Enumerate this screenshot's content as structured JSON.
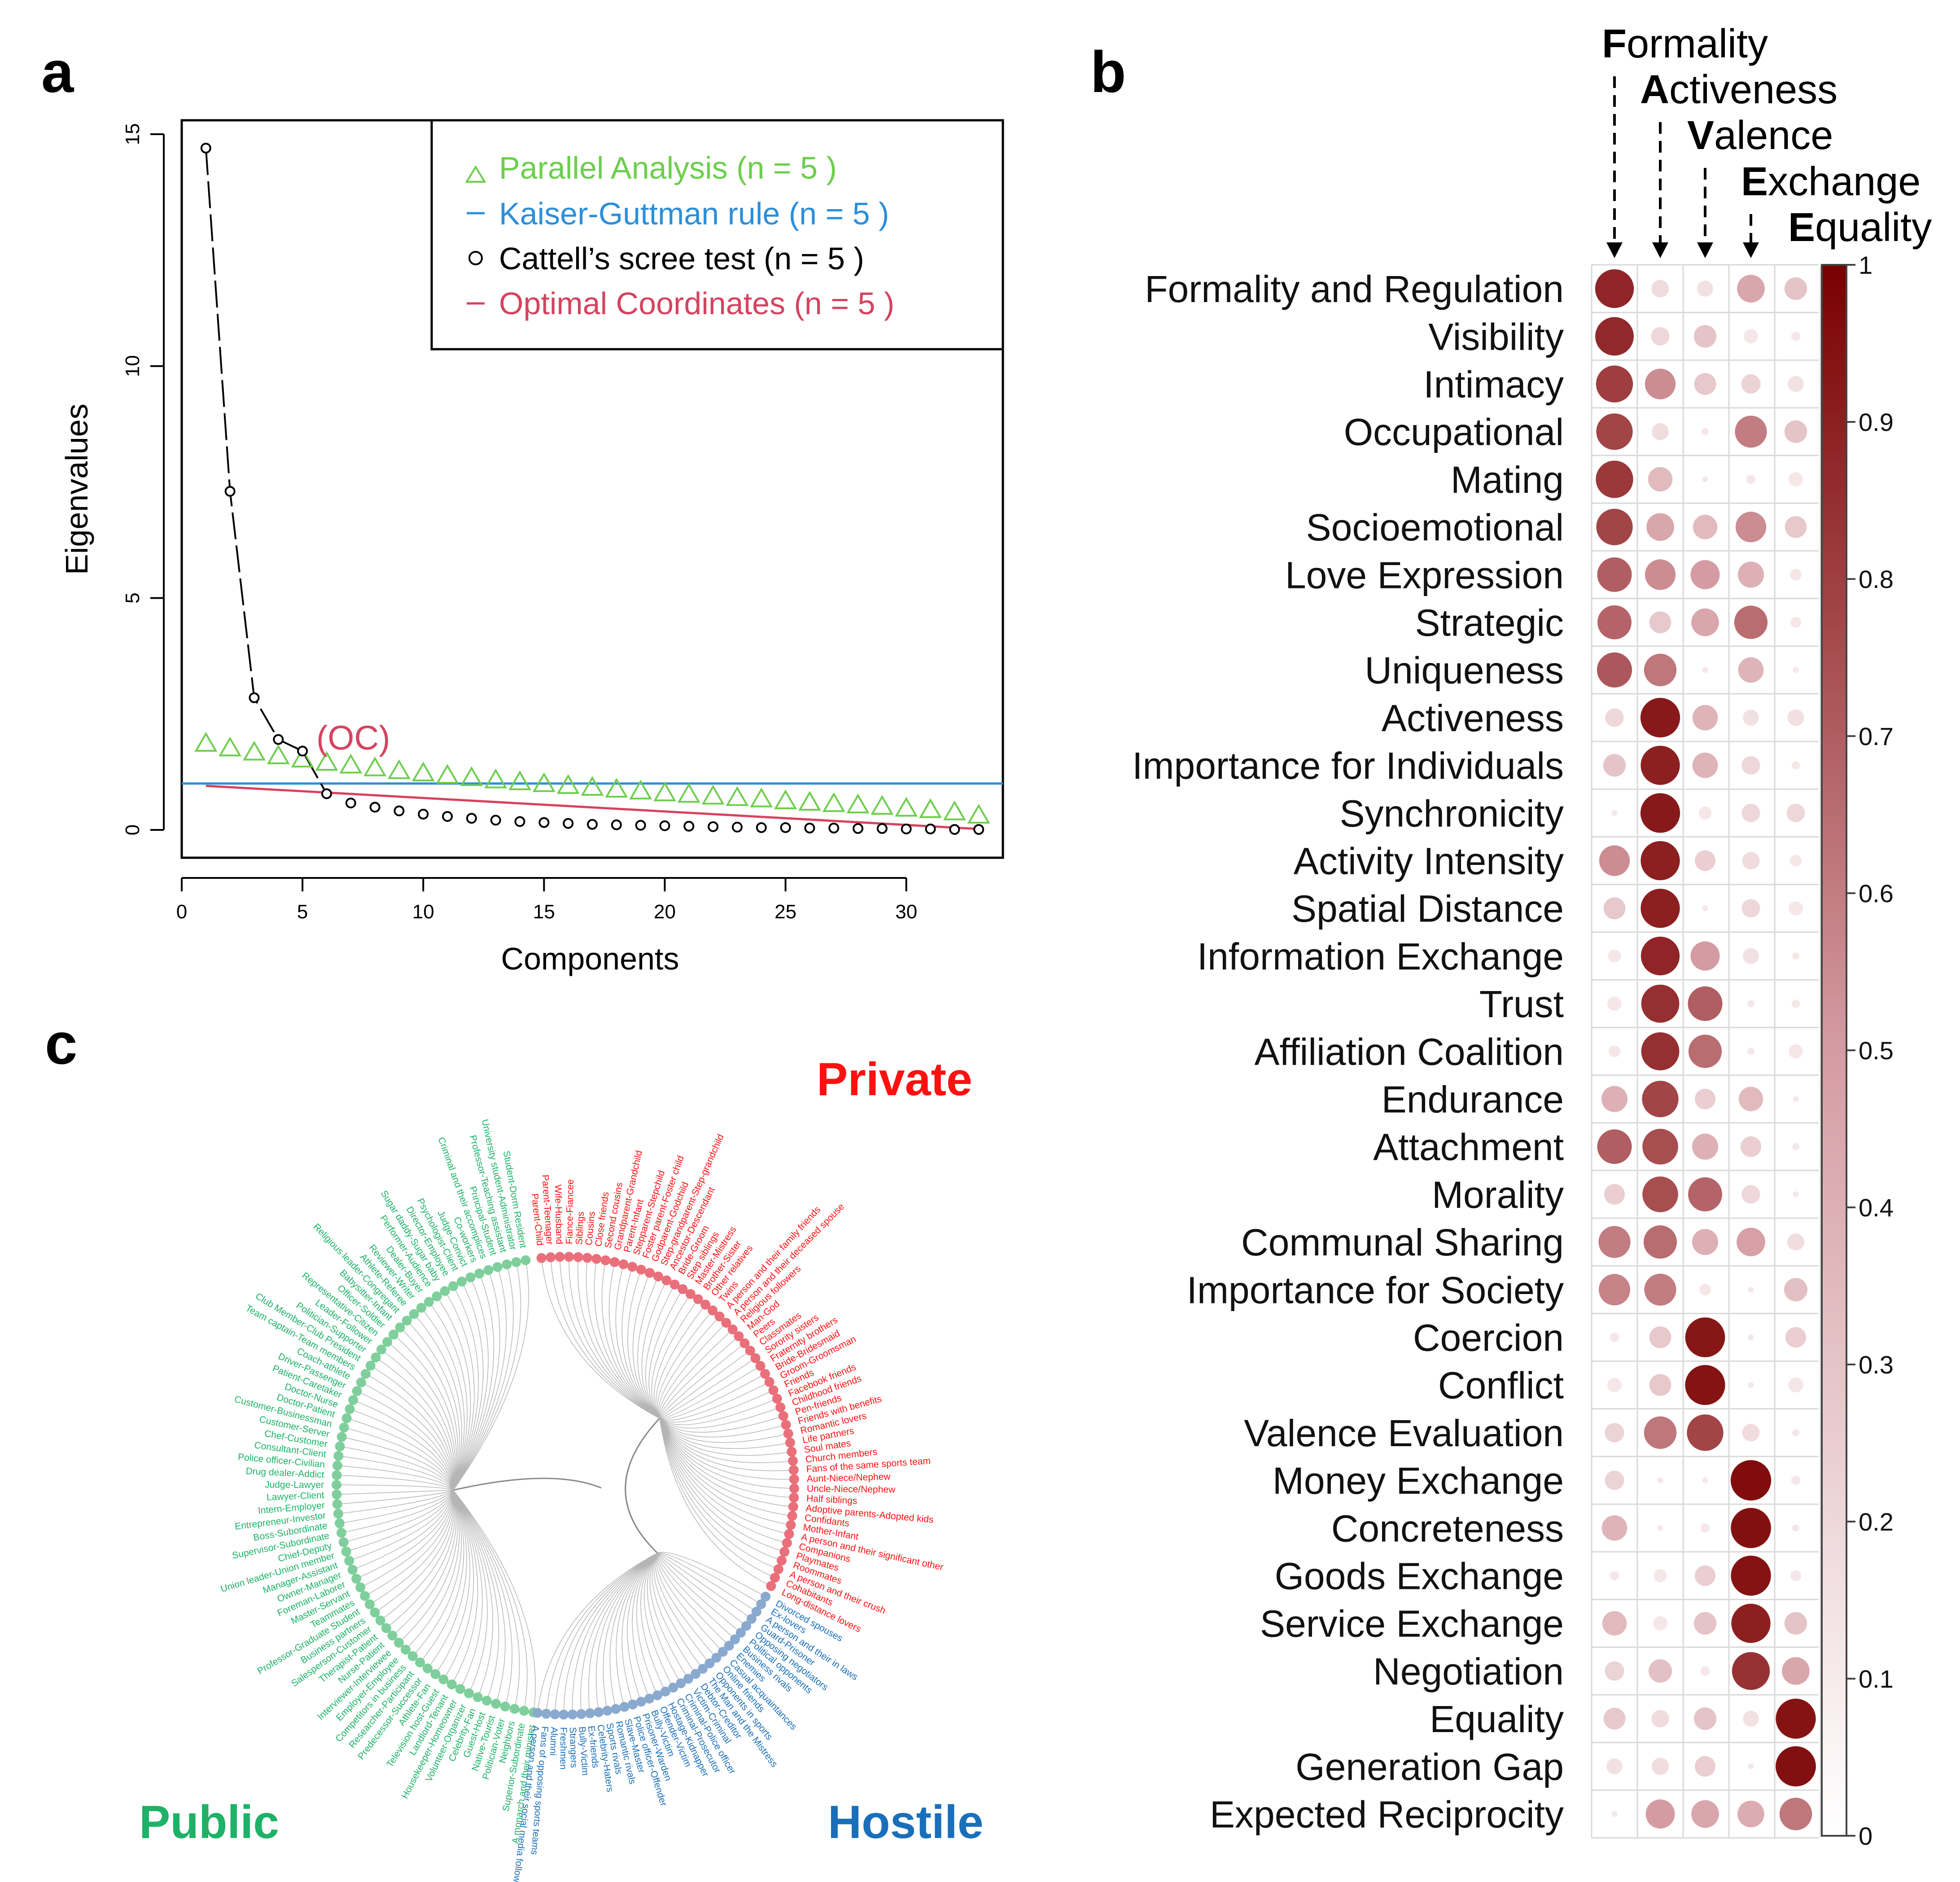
{
  "panels": {
    "a": "a",
    "b": "b",
    "c": "c"
  },
  "colors": {
    "parallel": "#6dce4d",
    "kaiser": "#2c8fd9",
    "cattell": "#000000",
    "optimal": "#d6435f",
    "public": "#1db267",
    "private": "#ff1010",
    "hostile": "#1a6fba",
    "dot_max": "#7a0000",
    "dot_mid": "#d49ca2"
  },
  "chart_data": [
    {
      "type": "scatter",
      "panel": "a",
      "xlabel": "Components",
      "ylabel": "Eigenvalues",
      "xlim": [
        0,
        34
      ],
      "ylim": [
        -0.6,
        15.3
      ],
      "xticks": [
        0,
        5,
        10,
        15,
        20,
        25,
        30
      ],
      "yticks": [
        0,
        5,
        10,
        15
      ],
      "annotation": "(OC)",
      "legend": [
        {
          "label": "Parallel Analysis (n =  5 )",
          "symbol": "triangle",
          "color_key": "parallel"
        },
        {
          "label": "Kaiser-Guttman rule (n =  5 )",
          "symbol": "dash",
          "color_key": "kaiser"
        },
        {
          "label": "Cattell’s scree test (n =  5 )",
          "symbol": "circle",
          "color_key": "cattell"
        },
        {
          "label": "Optimal Coordinates (n =  5 )",
          "symbol": "dash",
          "color_key": "optimal"
        }
      ],
      "series": [
        {
          "name": "Cattell’s scree test",
          "x": [
            1,
            2,
            3,
            4,
            5,
            6,
            7,
            8,
            9,
            10,
            11,
            12,
            13,
            14,
            15,
            16,
            17,
            18,
            19,
            20,
            21,
            22,
            23,
            24,
            25,
            26,
            27,
            28,
            29,
            30,
            31,
            32,
            33
          ],
          "values": [
            14.7,
            7.3,
            2.85,
            1.95,
            1.7,
            0.78,
            0.58,
            0.49,
            0.41,
            0.34,
            0.29,
            0.25,
            0.21,
            0.18,
            0.16,
            0.14,
            0.12,
            0.11,
            0.1,
            0.09,
            0.08,
            0.07,
            0.06,
            0.05,
            0.05,
            0.04,
            0.04,
            0.03,
            0.03,
            0.02,
            0.02,
            0.01,
            0.01
          ]
        },
        {
          "name": "Parallel Analysis",
          "x": [
            1,
            2,
            3,
            4,
            5,
            6,
            7,
            8,
            9,
            10,
            11,
            12,
            13,
            14,
            15,
            16,
            17,
            18,
            19,
            20,
            21,
            22,
            23,
            24,
            25,
            26,
            27,
            28,
            29,
            30,
            31,
            32,
            33
          ],
          "values": [
            1.88,
            1.78,
            1.69,
            1.61,
            1.54,
            1.47,
            1.41,
            1.35,
            1.29,
            1.24,
            1.19,
            1.14,
            1.09,
            1.05,
            1.01,
            0.97,
            0.93,
            0.89,
            0.85,
            0.81,
            0.78,
            0.74,
            0.71,
            0.68,
            0.64,
            0.61,
            0.58,
            0.55,
            0.52,
            0.48,
            0.45,
            0.4,
            0.33
          ]
        },
        {
          "name": "Kaiser-Guttman rule",
          "type": "hline",
          "y": 1.0
        },
        {
          "name": "Optimal Coordinates",
          "x": [
            1,
            33
          ],
          "values": [
            0.95,
            0.02
          ]
        }
      ]
    },
    {
      "type": "heatmap",
      "panel": "b",
      "columns": [
        "Formality",
        "Activeness",
        "Valence",
        "Exchange",
        "Equality"
      ],
      "colorbar_ticks": [
        "0",
        "0.1",
        "0.2",
        "0.3",
        "0.4",
        "0.5",
        "0.6",
        "0.7",
        "0.8",
        "0.9",
        "1"
      ],
      "rows": [
        "Formality and Regulation",
        "Visibility",
        "Intimacy",
        "Occupational",
        "Mating",
        "Socioemotional",
        "Love Expression",
        "Strategic",
        "Uniqueness",
        "Activeness",
        "Importance for Individuals",
        "Synchronicity",
        "Activity Intensity",
        "Spatial Distance",
        "Information Exchange",
        "Trust",
        "Affiliation Coalition",
        "Endurance",
        "Attachment",
        "Morality",
        "Communal Sharing",
        "Importance for Society",
        "Coercion",
        "Conflict",
        "Valence Evaluation",
        "Money Exchange",
        "Concreteness",
        "Goods Exchange",
        "Service Exchange",
        "Negotiation",
        "Equality",
        "Generation Gap",
        "Expected Reciprocity"
      ],
      "values": [
        [
          0.88,
          0.18,
          0.15,
          0.45,
          0.3
        ],
        [
          0.87,
          0.2,
          0.3,
          0.12,
          0.05
        ],
        [
          0.8,
          0.55,
          0.28,
          0.22,
          0.15
        ],
        [
          0.78,
          0.17,
          0.03,
          0.6,
          0.3
        ],
        [
          0.82,
          0.35,
          0.02,
          0.05,
          0.12
        ],
        [
          0.78,
          0.45,
          0.35,
          0.55,
          0.28
        ],
        [
          0.7,
          0.55,
          0.5,
          0.4,
          0.08
        ],
        [
          0.68,
          0.28,
          0.45,
          0.65,
          0.07
        ],
        [
          0.72,
          0.62,
          0.02,
          0.38,
          0.02
        ],
        [
          0.2,
          0.92,
          0.38,
          0.15,
          0.16
        ],
        [
          0.3,
          0.9,
          0.38,
          0.2,
          0.04
        ],
        [
          0.02,
          0.92,
          0.1,
          0.2,
          0.2
        ],
        [
          0.55,
          0.9,
          0.25,
          0.18,
          0.08
        ],
        [
          0.28,
          0.9,
          0.02,
          0.2,
          0.12
        ],
        [
          0.1,
          0.88,
          0.5,
          0.15,
          0.03
        ],
        [
          0.12,
          0.85,
          0.7,
          0.03,
          0.04
        ],
        [
          0.08,
          0.85,
          0.65,
          0.03,
          0.12
        ],
        [
          0.4,
          0.78,
          0.25,
          0.35,
          0.02
        ],
        [
          0.7,
          0.75,
          0.4,
          0.25,
          0.03
        ],
        [
          0.25,
          0.75,
          0.68,
          0.2,
          0.02
        ],
        [
          0.6,
          0.65,
          0.4,
          0.48,
          0.17
        ],
        [
          0.58,
          0.6,
          0.08,
          0.02,
          0.32
        ],
        [
          0.05,
          0.28,
          0.93,
          0.02,
          0.25
        ],
        [
          0.12,
          0.28,
          0.94,
          0.02,
          0.13
        ],
        [
          0.22,
          0.62,
          0.78,
          0.18,
          0.03
        ],
        [
          0.22,
          0.02,
          0.02,
          0.96,
          0.05
        ],
        [
          0.38,
          0.02,
          0.05,
          0.95,
          0.03
        ],
        [
          0.05,
          0.1,
          0.25,
          0.94,
          0.07
        ],
        [
          0.35,
          0.12,
          0.3,
          0.9,
          0.3
        ],
        [
          0.22,
          0.32,
          0.05,
          0.84,
          0.45
        ],
        [
          0.28,
          0.18,
          0.3,
          0.15,
          0.94
        ],
        [
          0.15,
          0.17,
          0.25,
          0.02,
          0.95
        ],
        [
          0.02,
          0.5,
          0.45,
          0.42,
          0.62
        ]
      ]
    },
    {
      "type": "dendrogram",
      "panel": "c",
      "groups": [
        {
          "name": "Public",
          "color_key": "public",
          "leaves": [
            "Student-Dorm Resident",
            "University student-Administrator",
            "Professor-Teaching assistant",
            "Principal-Student",
            "Criminal and their accomplices",
            "Co-workers",
            "Judge-Convict",
            "Psychologist-Client",
            "Director-Employee",
            "Sugar daddy-Sugar baby",
            "Performer-Audience",
            "Dealer-Buyer",
            "Reviewer-Writer",
            "Athlete-Referee",
            "Religious leader-Congregant",
            "Babysitter-Infant",
            "Officer-Soldier",
            "Representative-Citizen",
            "Leader-Follower",
            "Politician-Supporter",
            "Club Member-Club President",
            "Team captain-Team members",
            "Coach-athlete",
            "Driver-Passenger",
            "Patient-Caretaker",
            "Doctor-Nurse",
            "Doctor-Patient",
            "Customer-Businessman",
            "Customer-Server",
            "Chef-Customer",
            "Consultant-Client",
            "Police officer-Civilian",
            "Drug dealer-Addict",
            "Judge-Lawyer",
            "Lawyer-Client",
            "Intern-Employer",
            "Entrepreneur-Investor",
            "Boss-Subordinate",
            "Supervisor-Subordinate",
            "Chief-Deputy",
            "Union leader-Union member",
            "Manager-Assistant",
            "Owner-Manager",
            "Foreman-Laborer",
            "Master-Servant",
            "Teammates",
            "Professor-Graduate Student",
            "Business partners",
            "Salesperson-Customer",
            "Therapist-Patient",
            "Nurse-Patient",
            "Interviewer-Interviewee",
            "Employer-Employee",
            "Competitors in business",
            "Researcher-Participant",
            "Predecessor-Successor",
            "Athlete-Fan",
            "Television host-Guest",
            "Landlord-Tenant",
            "Housekeeper-Homeowner",
            "Volunteer-Organizer",
            "Celebrity-Fan",
            "Guest-Host",
            "Native-Tourist",
            "Politician-Voter",
            "Neighbors",
            "Superior-Subordinate",
            "A monarch and their minister"
          ]
        },
        {
          "name": "Private",
          "color_key": "private",
          "leaves": [
            "Parent-Child",
            "Parent-Teenager",
            "Wife-Husband",
            "Fiance-Fiancee",
            "Siblings",
            "Cousins",
            "Close friends",
            "Second cousins",
            "Grandparent-Grandchild",
            "Parent-Infant",
            "Stepparent-Stepchild",
            "Foster parent-Foster child",
            "Godparent-Godchild",
            "Step-grandparent-Step-grandchild",
            "Ancestor-Descendant",
            "Bride-Groom",
            "Step siblings",
            "Master-Mistress",
            "Brother-Sister",
            "Other relatives",
            "Twins",
            "A person and their family friends",
            "A person and their deceased spouse",
            "Religious followers",
            "Man-God",
            "Peers",
            "Classmates",
            "Sorority sisters",
            "Fraternity brothers",
            "Bride-Bridesmaid",
            "Groom-Groomsman",
            "Friends",
            "Facebook friends",
            "Childhood friends",
            "Pen-friends",
            "Friends with benefits",
            "Romantic lovers",
            "Life partners",
            "Soul mates",
            "Church members",
            "Fans of the same sports team",
            "Aunt-Niece/Nephew",
            "Uncle-Niece/Nephew",
            "Half siblings",
            "Adoptive parents-Adopted kids",
            "Confidants",
            "Mother-Infant",
            "A person and their significant other",
            "Companions",
            "Playmates",
            "Roommates",
            "A person and their crush",
            "Cohabitants",
            "Long-distance lovers"
          ]
        },
        {
          "name": "Hostile",
          "color_key": "hostile",
          "leaves": [
            "Divorced spouses",
            "Ex-lovers",
            "A person and their in laws",
            "Guard-Prisoner",
            "Opposing negotiators",
            "Political opponents",
            "Business rivals",
            "Enemies",
            "Casual acquaintances",
            "Online friends",
            "Opponents in sports",
            "The Man and the Mistress",
            "Debtor-Creditor",
            "Victim-Criminal",
            "Criminal-Police officer",
            "Criminal-Prosecutor",
            "Hostage-Kidnapper",
            "Offender-Victim",
            "Bully-Victim",
            "Prisoner-Warden",
            "Police officer-Offender",
            "Slave-Master",
            "Romantic rivals",
            "Sports rivals",
            "Celebrity-Haters",
            "Ex-friends",
            "Bully-Victim",
            "Strangers",
            "Freshmen",
            "Alumni",
            "Fans of opposing sports teams",
            "A person and their social media follower"
          ]
        }
      ]
    }
  ]
}
